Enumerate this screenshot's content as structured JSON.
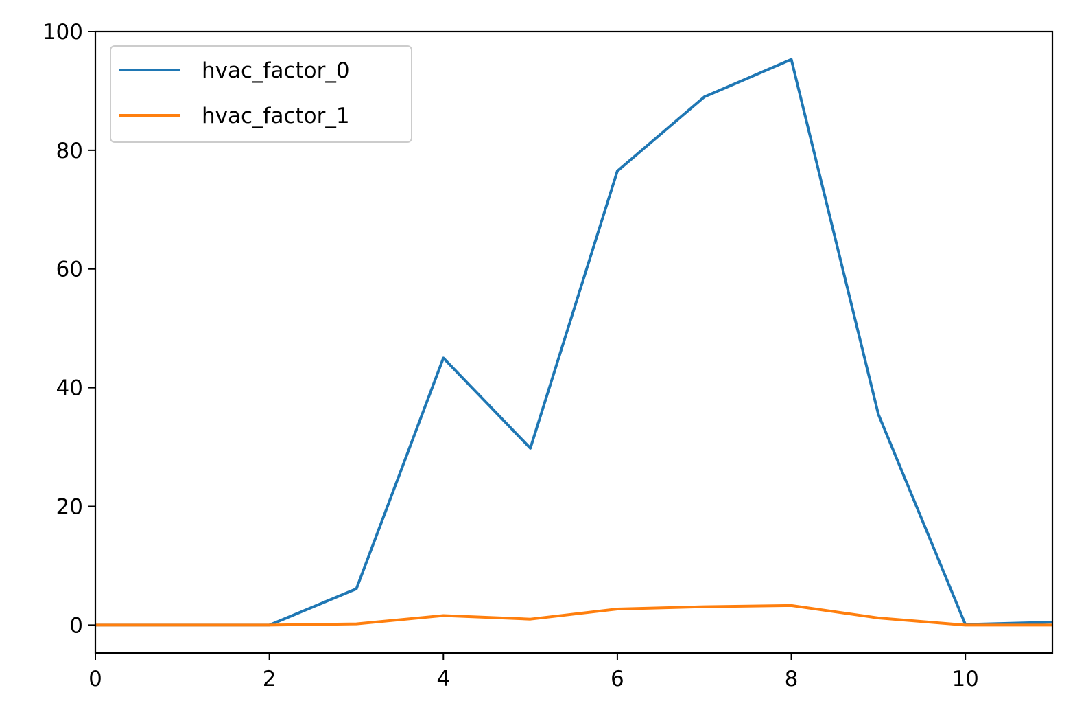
{
  "chart_data": {
    "type": "line",
    "title": "",
    "xlabel": "",
    "ylabel": "",
    "x": [
      0,
      1,
      2,
      3,
      4,
      5,
      6,
      7,
      8,
      9,
      10,
      11
    ],
    "xlim": [
      0,
      11
    ],
    "ylim": [
      -4.7,
      100
    ],
    "xticks": [
      0,
      2,
      4,
      6,
      8,
      10
    ],
    "yticks": [
      0,
      20,
      40,
      60,
      80,
      100
    ],
    "grid": false,
    "legend_position": "top-left",
    "series": [
      {
        "name": "hvac_factor_0",
        "color": "#1f77b4",
        "values": [
          0,
          0,
          0,
          6.1,
          45,
          29.8,
          76.5,
          89,
          95.3,
          35.5,
          0.1,
          0.5
        ]
      },
      {
        "name": "hvac_factor_1",
        "color": "#ff7f0e",
        "values": [
          0,
          0,
          0,
          0.2,
          1.6,
          1.0,
          2.7,
          3.1,
          3.3,
          1.2,
          0,
          0
        ]
      }
    ]
  }
}
